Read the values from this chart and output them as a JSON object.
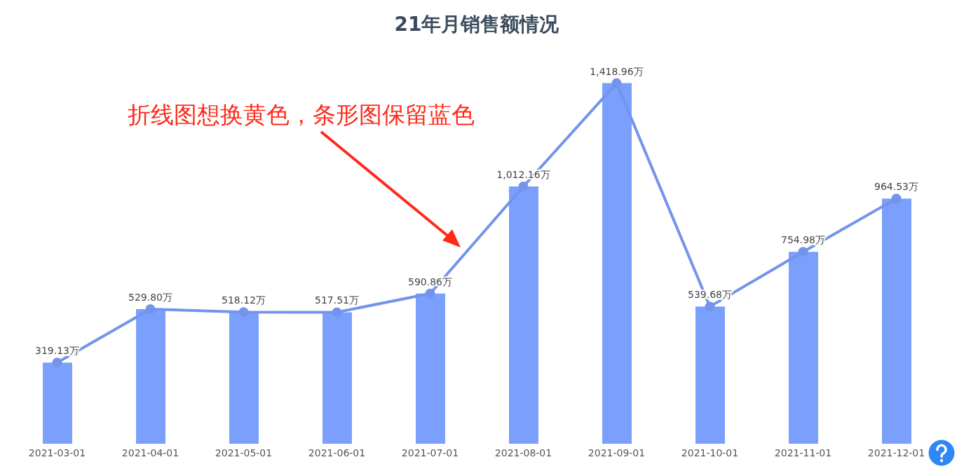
{
  "chart_data": {
    "type": "bar",
    "title": "21年月销售额情况",
    "categories": [
      "2021-03-01",
      "2021-04-01",
      "2021-05-01",
      "2021-06-01",
      "2021-07-01",
      "2021-08-01",
      "2021-09-01",
      "2021-10-01",
      "2021-11-01",
      "2021-12-01"
    ],
    "series": [
      {
        "color": "#7b9ffc",
        "values": [
          319.13,
          529.8,
          518.12,
          517.51,
          590.86,
          1012.16,
          1418.96,
          539.68,
          754.98,
          964.53
        ]
      },
      {
        "type": "line",
        "color": "#7394ea",
        "values": [
          319.13,
          529.8,
          518.12,
          517.51,
          590.86,
          1012.16,
          1418.96,
          539.68,
          754.98,
          964.53
        ],
        "value_labels": [
          "319.13万",
          "529.80万",
          "518.12万",
          "517.51万",
          "590.86万",
          "1,012.16万",
          "1,418.96万",
          "539.68万",
          "754.98万",
          "964.53万"
        ]
      }
    ],
    "marker": "circle",
    "line_style": "solid",
    "annotations": [
      "折线图想换黄色，条形图保留蓝色"
    ]
  }
}
